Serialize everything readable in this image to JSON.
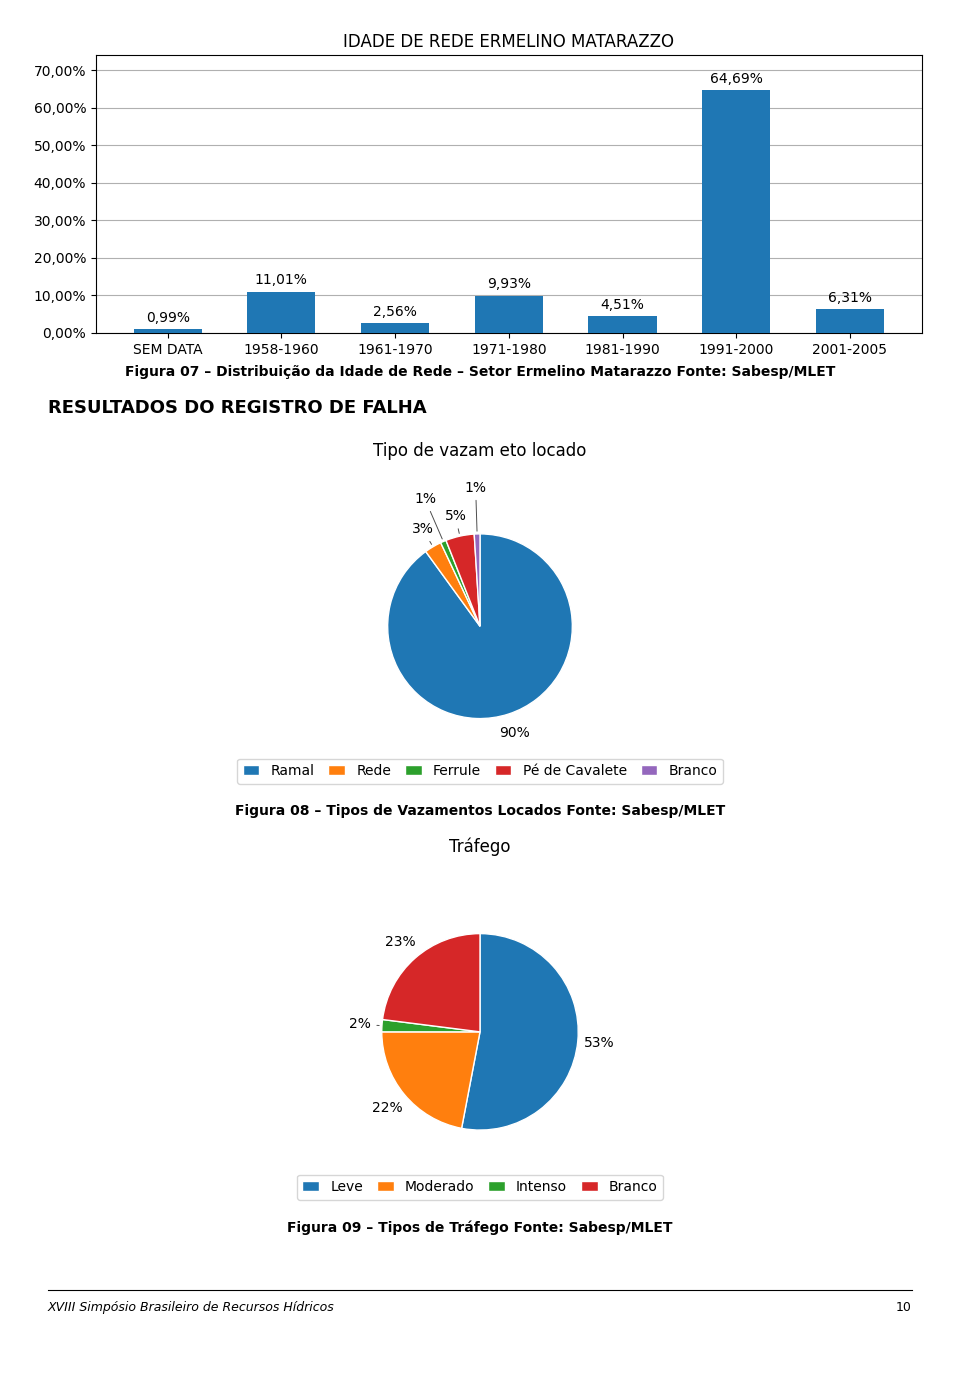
{
  "chart_data": [
    {
      "type": "bar",
      "title": "IDADE DE REDE ERMELINO MATARAZZO",
      "categories": [
        "SEM DATA",
        "1958-1960",
        "1961-1970",
        "1971-1980",
        "1981-1990",
        "1991-2000",
        "2001-2005"
      ],
      "values": [
        0.99,
        11.01,
        2.56,
        9.93,
        4.51,
        64.69,
        6.31
      ],
      "value_labels": [
        "0,99%",
        "11,01%",
        "2,56%",
        "9,93%",
        "4,51%",
        "64,69%",
        "6,31%"
      ],
      "data_labels": true,
      "ylim": [
        0,
        74
      ],
      "yticks": [
        {
          "value": 0,
          "label": "0,00%"
        },
        {
          "value": 10,
          "label": "10,00%"
        },
        {
          "value": 20,
          "label": "20,00%"
        },
        {
          "value": 30,
          "label": "30,00%"
        },
        {
          "value": 40,
          "label": "40,00%"
        },
        {
          "value": 50,
          "label": "50,00%"
        },
        {
          "value": 60,
          "label": "60,00%"
        },
        {
          "value": 70,
          "label": "70,00%"
        }
      ],
      "grid": true,
      "annotations": [
        "Figura 07 – Distribuição da Idade de Rede – Setor Ermelino Matarazzo Fonte: Sabesp/MLET",
        "RESULTADOS DO REGISTRO DE FALHA"
      ]
    },
    {
      "type": "pie",
      "title": "Tipo de vazam eto locado",
      "categories": [
        "Ramal",
        "Rede",
        "Ferrule",
        "Pé de Cavalete",
        "Branco"
      ],
      "values": [
        90,
        3,
        1,
        5,
        1
      ],
      "value_labels": [
        "90%",
        "3%",
        "1%",
        "5%",
        "1%"
      ],
      "data_labels": true,
      "legend": "lower center",
      "annotations": [
        "Figura 08 – Tipos de Vazamentos Locados Fonte: Sabesp/MLET"
      ]
    },
    {
      "type": "pie",
      "title": "Tráfego",
      "categories": [
        "Leve",
        "Moderado",
        "Intenso",
        "Branco"
      ],
      "values": [
        53,
        22,
        2,
        23
      ],
      "value_labels": [
        "53%",
        "22%",
        "2%",
        "23%"
      ],
      "data_labels": true,
      "legend": "lower center",
      "annotations": [
        "Figura 09 – Tipos de Tráfego Fonte: Sabesp/MLET",
        "XVIII Simpósio Brasileiro de Recursos Hídricos",
        "10"
      ]
    }
  ]
}
